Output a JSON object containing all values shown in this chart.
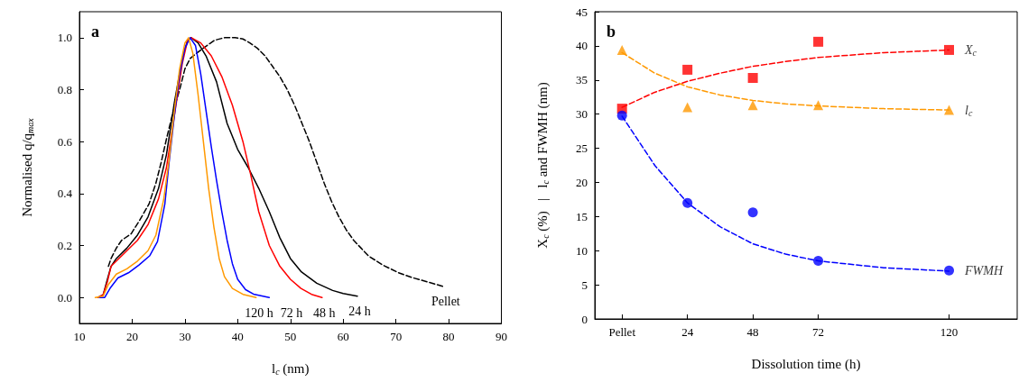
{
  "chart_data": [
    {
      "type": "line",
      "title": "a",
      "xlabel": "l$_{c}$ (nm)",
      "ylabel": "Normalised q/q$_{max}$",
      "xlim": [
        10,
        90
      ],
      "xticks": [
        10,
        20,
        30,
        40,
        50,
        60,
        70,
        80,
        90
      ],
      "ylim": [
        -0.1,
        1.1
      ],
      "yticks": [
        {
          "value": 0,
          "label": "0.0"
        },
        {
          "value": 0.2,
          "label": "0.2"
        },
        {
          "value": 0.4,
          "label": "0.4"
        },
        {
          "value": 0.6,
          "label": "0.6"
        },
        {
          "value": 0.8,
          "label": "0.8"
        },
        {
          "value": 1,
          "label": "1.0"
        }
      ],
      "grid": false,
      "legend": false,
      "marker": "none",
      "line_style": "solid",
      "series": [
        {
          "name": "Pellet",
          "color": "#000000",
          "line_style": "dashed",
          "x": [
            15.5,
            16,
            17,
            18,
            19.8,
            21.5,
            23.2,
            24.5,
            25.5,
            26.5,
            27.7,
            29,
            30,
            31,
            32.2,
            33.5,
            35.6,
            37.5,
            39.5,
            41,
            42.3,
            43.7,
            45.2,
            46.6,
            48,
            49.4,
            50.8,
            52.2,
            53.6,
            55,
            56.4,
            57.8,
            59.2,
            60.6,
            62,
            63.4,
            64.8,
            67.5,
            70.5,
            73,
            76,
            78.9
          ],
          "values": [
            0.12,
            0.15,
            0.19,
            0.22,
            0.245,
            0.3,
            0.36,
            0.44,
            0.52,
            0.61,
            0.71,
            0.8,
            0.88,
            0.92,
            0.94,
            0.96,
            0.99,
            1.0,
            1.0,
            0.995,
            0.98,
            0.96,
            0.93,
            0.89,
            0.85,
            0.8,
            0.74,
            0.67,
            0.6,
            0.52,
            0.44,
            0.37,
            0.31,
            0.26,
            0.22,
            0.19,
            0.16,
            0.125,
            0.095,
            0.077,
            0.06,
            0.043
          ]
        },
        {
          "name": "24 h",
          "color": "#000000",
          "x": [
            13.5,
            14.5,
            15.3,
            16,
            17,
            19,
            21,
            23,
            25,
            26.5,
            28,
            29.5,
            30.5,
            31.2,
            32.5,
            34,
            36,
            38,
            40,
            42,
            44,
            46,
            48,
            50,
            52,
            55,
            58,
            60,
            62.7
          ],
          "values": [
            0,
            0.01,
            0.07,
            0.12,
            0.15,
            0.19,
            0.24,
            0.31,
            0.42,
            0.55,
            0.75,
            0.92,
            0.99,
            1.0,
            0.98,
            0.93,
            0.83,
            0.67,
            0.57,
            0.5,
            0.42,
            0.33,
            0.23,
            0.15,
            0.1,
            0.055,
            0.027,
            0.015,
            0.005
          ]
        },
        {
          "name": "48 h",
          "color": "#ff0000",
          "x": [
            13.5,
            14.5,
            15.3,
            16,
            17,
            19,
            21,
            23,
            25,
            26.5,
            28,
            29.5,
            30.5,
            31.2,
            33,
            35,
            37,
            39,
            41,
            42.5,
            44,
            46,
            48,
            50,
            52,
            54,
            56
          ],
          "values": [
            0,
            0.01,
            0.06,
            0.12,
            0.14,
            0.18,
            0.22,
            0.28,
            0.38,
            0.5,
            0.7,
            0.9,
            0.99,
            1.0,
            0.98,
            0.93,
            0.85,
            0.74,
            0.6,
            0.47,
            0.33,
            0.2,
            0.12,
            0.07,
            0.035,
            0.012,
            0
          ]
        },
        {
          "name": "72 h",
          "color": "#0000ff",
          "x": [
            13.8,
            14.8,
            15.8,
            17.3,
            19.3,
            21.3,
            23.3,
            24.8,
            26.2,
            27,
            28,
            29,
            30,
            31,
            32,
            33,
            34,
            35,
            36,
            37,
            38,
            39,
            40,
            41.5,
            43,
            46
          ],
          "values": [
            0,
            0,
            0.035,
            0.075,
            0.095,
            0.125,
            0.16,
            0.215,
            0.36,
            0.52,
            0.7,
            0.86,
            0.96,
            1.0,
            0.97,
            0.86,
            0.72,
            0.58,
            0.45,
            0.33,
            0.22,
            0.13,
            0.07,
            0.03,
            0.013,
            0
          ]
        },
        {
          "name": "120 h",
          "color": "#ff9900",
          "x": [
            13,
            14.5,
            15.5,
            17,
            19,
            21,
            23,
            24.5,
            26,
            27,
            28,
            29,
            30,
            30.7,
            31.5,
            32.5,
            33.5,
            34.5,
            35.5,
            36.5,
            37.5,
            39,
            41,
            43.5
          ],
          "values": [
            0,
            0.005,
            0.05,
            0.09,
            0.11,
            0.14,
            0.18,
            0.24,
            0.38,
            0.53,
            0.72,
            0.88,
            0.98,
            1.0,
            0.94,
            0.78,
            0.6,
            0.42,
            0.27,
            0.15,
            0.08,
            0.035,
            0.012,
            0
          ]
        }
      ]
    },
    {
      "type": "scatter",
      "title": "b",
      "xlabel": "Dissolution time (h)",
      "ylabel": "X$_{c}$ (%)   |   l$_{c}$ and FWMH (nm)",
      "xlim": [
        -10,
        145
      ],
      "xticks": [
        {
          "value": 0,
          "label": "Pellet"
        },
        24,
        48,
        72,
        120
      ],
      "ylim": [
        0,
        45
      ],
      "yticks": [
        0,
        5,
        10,
        15,
        20,
        25,
        30,
        35,
        40,
        45
      ],
      "grid": false,
      "legend": false,
      "series": [
        {
          "name": "X$_{c}$",
          "color": "#ff0000",
          "marker": "square",
          "x": [
            0,
            24,
            48,
            72,
            120
          ],
          "values": [
            30.8,
            36.5,
            35.3,
            40.6,
            39.4
          ]
        },
        {
          "name": "l$_{c}$",
          "color": "#ff9900",
          "marker": "triangle",
          "x": [
            0,
            24,
            48,
            72,
            120
          ],
          "values": [
            39.4,
            31.0,
            31.3,
            31.3,
            30.6
          ]
        },
        {
          "name": "FWMH",
          "color": "#0000ff",
          "marker": "circle",
          "x": [
            0,
            24,
            48,
            72,
            120
          ],
          "values": [
            29.8,
            17.0,
            15.6,
            8.5,
            7.1
          ]
        },
        {
          "type": "line",
          "color": "#ff0000",
          "marker": "none",
          "line_style": "dashed",
          "x": [
            0,
            12,
            24,
            36,
            48,
            60,
            72,
            96,
            120
          ],
          "values": [
            31.0,
            33.2,
            34.8,
            36.0,
            37.0,
            37.7,
            38.3,
            39.0,
            39.4
          ]
        },
        {
          "type": "line",
          "color": "#ff9900",
          "marker": "none",
          "line_style": "dashed",
          "x": [
            0,
            12,
            24,
            36,
            48,
            60,
            72,
            96,
            120
          ],
          "values": [
            39.0,
            36.0,
            34.0,
            32.8,
            32.0,
            31.5,
            31.2,
            30.8,
            30.6
          ]
        },
        {
          "type": "line",
          "color": "#0000ff",
          "marker": "none",
          "line_style": "dashed",
          "x": [
            0,
            12,
            24,
            36,
            48,
            60,
            72,
            96,
            120
          ],
          "values": [
            29.7,
            22.5,
            17.0,
            13.5,
            11.0,
            9.5,
            8.5,
            7.5,
            7.0
          ]
        }
      ]
    }
  ]
}
